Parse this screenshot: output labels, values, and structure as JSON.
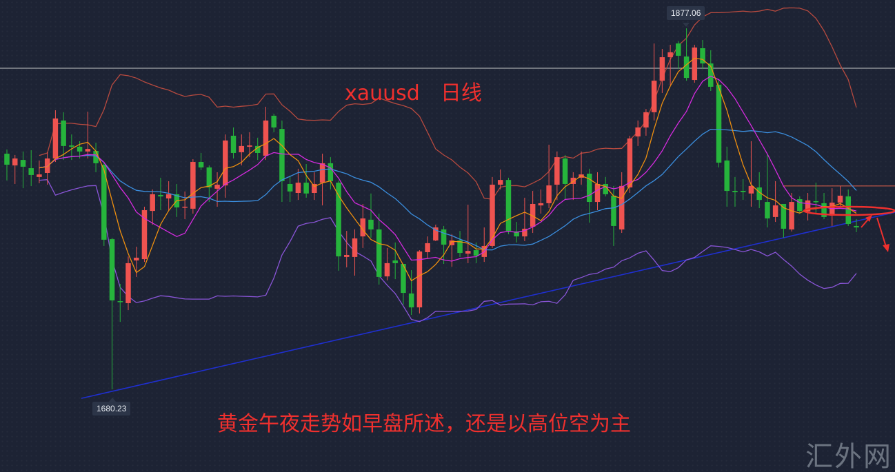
{
  "chart_data": {
    "type": "candlestick",
    "title": "xauusd　日线",
    "annotation_text": "黄金午夜走势如早盘所述，还是以高位空为主",
    "watermark": "汇外网",
    "high_label": "1877.06",
    "low_label": "1680.23",
    "ylim": [
      1660,
      1892.5
    ],
    "colors": {
      "up": "#ef5350",
      "down": "#26b43c",
      "ma5": "#f0900f",
      "ma10": "#d62be0",
      "ma20": "#3b8fe0",
      "boll_upper": "#b84a3f",
      "boll_lower": "#8a55d8",
      "trendline": "#1f2fd0",
      "markup": "#f0302e",
      "hline": "#c8c8c8",
      "resistance": "#e0604a"
    },
    "horizontal_lines": [
      {
        "price": 1855.3,
        "color": "hline"
      },
      {
        "price": 1791.1,
        "color": "resistance",
        "from_index": 96
      }
    ],
    "trendline": {
      "from": {
        "index": 9.2,
        "price": 1675.3
      },
      "to": {
        "index": 109.8,
        "price": 1776.8
      }
    },
    "ohlc": [
      [
        1808.7,
        1811.0,
        1794.1,
        1802.7
      ],
      [
        1802.3,
        1808.0,
        1792.2,
        1806.1
      ],
      [
        1805.3,
        1809.9,
        1789.9,
        1801.6
      ],
      [
        1800.8,
        1810.6,
        1791.1,
        1797.1
      ],
      [
        1796.0,
        1805.0,
        1792.6,
        1797.4
      ],
      [
        1798.2,
        1809.5,
        1791.8,
        1806.1
      ],
      [
        1806.1,
        1832.4,
        1804.2,
        1827.9
      ],
      [
        1826.8,
        1831.3,
        1805.3,
        1812.9
      ],
      [
        1813.2,
        1819.2,
        1805.3,
        1812.5
      ],
      [
        1812.5,
        1815.5,
        1806.1,
        1809.9
      ],
      [
        1809.9,
        1831.6,
        1806.1,
        1811.3
      ],
      [
        1810.2,
        1814.7,
        1798.6,
        1803.5
      ],
      [
        1802.7,
        1803.5,
        1758.4,
        1761.8
      ],
      [
        1762.1,
        1762.9,
        1680.23,
        1728.7
      ],
      [
        1728.3,
        1737.7,
        1717.0,
        1727.9
      ],
      [
        1727.2,
        1752.7,
        1723.4,
        1749.0
      ],
      [
        1750.5,
        1758.0,
        1741.5,
        1752.0
      ],
      [
        1751.2,
        1779.8,
        1749.7,
        1777.9
      ],
      [
        1777.5,
        1789.2,
        1770.0,
        1786.6
      ],
      [
        1786.2,
        1795.6,
        1777.9,
        1785.4
      ],
      [
        1784.3,
        1793.7,
        1777.9,
        1786.6
      ],
      [
        1786.6,
        1792.2,
        1774.2,
        1779.4
      ],
      [
        1779.4,
        1788.1,
        1773.0,
        1779.8
      ],
      [
        1778.7,
        1805.7,
        1776.0,
        1804.2
      ],
      [
        1804.2,
        1809.1,
        1799.7,
        1801.2
      ],
      [
        1801.2,
        1802.3,
        1782.4,
        1790.3
      ],
      [
        1789.6,
        1798.6,
        1779.8,
        1791.8
      ],
      [
        1791.4,
        1819.2,
        1784.7,
        1815.9
      ],
      [
        1818.5,
        1823.0,
        1806.1,
        1809.1
      ],
      [
        1809.5,
        1819.2,
        1802.3,
        1812.9
      ],
      [
        1812.5,
        1820.4,
        1806.8,
        1813.2
      ],
      [
        1812.9,
        1817.4,
        1805.3,
        1809.1
      ],
      [
        1807.6,
        1834.3,
        1805.3,
        1826.8
      ],
      [
        1829.4,
        1830.5,
        1820.4,
        1823.0
      ],
      [
        1822.2,
        1826.8,
        1782.4,
        1793.7
      ],
      [
        1792.2,
        1796.7,
        1782.4,
        1788.1
      ],
      [
        1787.3,
        1800.5,
        1783.5,
        1792.9
      ],
      [
        1792.9,
        1803.1,
        1784.7,
        1787.0
      ],
      [
        1787.3,
        1798.6,
        1783.5,
        1792.2
      ],
      [
        1792.9,
        1808.7,
        1780.5,
        1803.5
      ],
      [
        1803.5,
        1806.8,
        1789.2,
        1793.7
      ],
      [
        1792.9,
        1794.1,
        1744.9,
        1752.7
      ],
      [
        1752.4,
        1766.6,
        1746.7,
        1753.5
      ],
      [
        1752.4,
        1767.4,
        1742.2,
        1762.5
      ],
      [
        1763.6,
        1781.3,
        1757.3,
        1773.4
      ],
      [
        1772.7,
        1787.0,
        1762.9,
        1767.4
      ],
      [
        1767.4,
        1776.0,
        1737.3,
        1741.5
      ],
      [
        1741.8,
        1757.3,
        1739.6,
        1749.0
      ],
      [
        1750.5,
        1760.3,
        1740.3,
        1749.0
      ],
      [
        1748.6,
        1748.6,
        1726.4,
        1732.8
      ],
      [
        1732.5,
        1745.2,
        1720.8,
        1724.9
      ],
      [
        1724.9,
        1756.1,
        1721.6,
        1755.4
      ],
      [
        1755.0,
        1763.6,
        1751.6,
        1759.9
      ],
      [
        1761.4,
        1770.0,
        1761.0,
        1768.5
      ],
      [
        1767.4,
        1769.3,
        1748.6,
        1759.1
      ],
      [
        1758.8,
        1764.8,
        1747.1,
        1761.4
      ],
      [
        1761.4,
        1766.6,
        1752.4,
        1754.6
      ],
      [
        1754.2,
        1780.9,
        1749.0,
        1755.7
      ],
      [
        1756.1,
        1760.3,
        1749.0,
        1753.1
      ],
      [
        1752.4,
        1768.5,
        1749.7,
        1758.4
      ],
      [
        1758.4,
        1796.0,
        1757.3,
        1791.8
      ],
      [
        1791.8,
        1800.1,
        1789.2,
        1794.4
      ],
      [
        1794.4,
        1795.6,
        1764.8,
        1766.6
      ],
      [
        1766.3,
        1771.5,
        1760.3,
        1763.6
      ],
      [
        1763.6,
        1784.7,
        1761.0,
        1767.8
      ],
      [
        1768.9,
        1788.4,
        1765.5,
        1781.3
      ],
      [
        1780.5,
        1789.2,
        1776.0,
        1781.7
      ],
      [
        1781.7,
        1813.6,
        1779.0,
        1791.4
      ],
      [
        1791.8,
        1809.9,
        1783.5,
        1806.8
      ],
      [
        1806.1,
        1808.0,
        1783.5,
        1792.2
      ],
      [
        1792.2,
        1798.6,
        1783.5,
        1795.6
      ],
      [
        1795.6,
        1809.9,
        1791.8,
        1797.4
      ],
      [
        1797.8,
        1800.5,
        1771.1,
        1782.4
      ],
      [
        1782.4,
        1798.6,
        1777.9,
        1792.2
      ],
      [
        1792.2,
        1796.0,
        1785.4,
        1786.6
      ],
      [
        1785.8,
        1791.1,
        1758.4,
        1769.3
      ],
      [
        1767.4,
        1798.6,
        1765.5,
        1791.1
      ],
      [
        1790.3,
        1818.5,
        1787.3,
        1817.0
      ],
      [
        1818.1,
        1826.8,
        1812.9,
        1823.0
      ],
      [
        1823.0,
        1833.1,
        1818.5,
        1831.3
      ],
      [
        1831.3,
        1868.8,
        1826.8,
        1848.5
      ],
      [
        1848.5,
        1865.8,
        1841.8,
        1861.3
      ],
      [
        1861.3,
        1868.1,
        1846.3,
        1864.0
      ],
      [
        1868.8,
        1870.0,
        1854.9,
        1862.1
      ],
      [
        1861.7,
        1877.06,
        1848.5,
        1850.0
      ],
      [
        1848.9,
        1868.1,
        1847.4,
        1866.6
      ],
      [
        1866.2,
        1870.7,
        1854.9,
        1857.9
      ],
      [
        1857.9,
        1865.1,
        1842.9,
        1845.2
      ],
      [
        1846.3,
        1849.3,
        1801.2,
        1803.8
      ],
      [
        1805.0,
        1812.5,
        1779.8,
        1788.4
      ],
      [
        1788.4,
        1796.0,
        1779.8,
        1787.7
      ],
      [
        1788.4,
        1794.8,
        1783.5,
        1787.7
      ],
      [
        1787.0,
        1815.5,
        1779.8,
        1791.1
      ],
      [
        1790.3,
        1798.6,
        1779.0,
        1783.5
      ],
      [
        1782.4,
        1808.7,
        1768.5,
        1773.4
      ],
      [
        1774.2,
        1793.7,
        1771.5,
        1780.5
      ],
      [
        1781.3,
        1781.3,
        1762.9,
        1767.8
      ],
      [
        1767.4,
        1787.3,
        1766.3,
        1782.4
      ],
      [
        1783.9,
        1785.4,
        1776.0,
        1777.5
      ],
      [
        1777.2,
        1787.3,
        1772.3,
        1783.2
      ],
      [
        1782.8,
        1792.9,
        1776.0,
        1782.4
      ],
      [
        1781.7,
        1787.3,
        1773.0,
        1774.2
      ],
      [
        1774.9,
        1789.9,
        1769.3,
        1782.0
      ],
      [
        1782.0,
        1791.1,
        1779.8,
        1785.8
      ],
      [
        1785.4,
        1789.2,
        1769.3,
        1770.4
      ],
      [
        1769.3,
        1773.0,
        1765.9,
        1768.5
      ]
    ]
  }
}
